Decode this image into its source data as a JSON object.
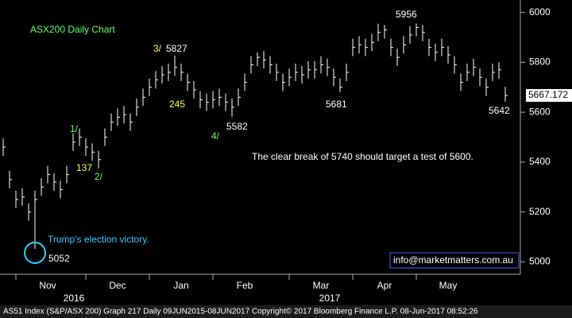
{
  "chart_data": {
    "type": "ohlc",
    "title": "ASX200 Daily Chart",
    "categories": [
      null,
      null,
      null,
      null,
      null,
      null,
      null,
      "Nov",
      null,
      null,
      null,
      null,
      null,
      null,
      null,
      null,
      null,
      null,
      "Dec",
      null,
      null,
      null,
      null,
      null,
      null,
      null,
      null,
      null,
      "Jan",
      null,
      null,
      null,
      null,
      null,
      null,
      null,
      null,
      null,
      "Feb",
      null,
      null,
      null,
      null,
      null,
      null,
      null,
      null,
      null,
      null,
      null,
      "Mar",
      null,
      null,
      null,
      null,
      null,
      null,
      null,
      null,
      null,
      "Apr",
      null,
      null,
      null,
      null,
      null,
      null,
      null,
      null,
      null,
      "May",
      null,
      null,
      null,
      null,
      null,
      null,
      null,
      null,
      null
    ],
    "years": [
      "2016",
      "2017"
    ],
    "series": [
      {
        "name": "AS51 Index",
        "color": "#ffffff",
        "high": [
          5495,
          5365,
          5285,
          5295,
          5235,
          5285,
          5335,
          5385,
          5355,
          5325,
          5385,
          5515,
          5535,
          5495,
          5475,
          5445,
          5535,
          5595,
          5615,
          5625,
          5595,
          5655,
          5695,
          5735,
          5765,
          5785,
          5795,
          5827,
          5795,
          5755,
          5725,
          5685,
          5675,
          5685,
          5695,
          5675,
          5655,
          5695,
          5755,
          5825,
          5840,
          5845,
          5825,
          5795,
          5755,
          5775,
          5795,
          5785,
          5805,
          5805,
          5825,
          5815,
          5775,
          5735,
          5795,
          5895,
          5905,
          5895,
          5915,
          5955,
          5950,
          5895,
          5855,
          5905,
          5945,
          5956,
          5950,
          5895,
          5875,
          5895,
          5865,
          5825,
          5755,
          5795,
          5815,
          5775,
          5735,
          5795,
          5800,
          5702
        ],
        "low": [
          5425,
          5295,
          5215,
          5225,
          5165,
          5052,
          5265,
          5315,
          5285,
          5255,
          5315,
          5445,
          5465,
          5425,
          5405,
          5375,
          5465,
          5525,
          5545,
          5555,
          5525,
          5585,
          5625,
          5665,
          5695,
          5715,
          5725,
          5745,
          5725,
          5685,
          5655,
          5615,
          5605,
          5615,
          5625,
          5605,
          5582,
          5625,
          5685,
          5755,
          5785,
          5775,
          5755,
          5725,
          5685,
          5705,
          5725,
          5715,
          5735,
          5735,
          5755,
          5745,
          5705,
          5681,
          5725,
          5825,
          5835,
          5825,
          5845,
          5885,
          5895,
          5825,
          5785,
          5835,
          5875,
          5905,
          5885,
          5825,
          5805,
          5825,
          5795,
          5755,
          5685,
          5725,
          5745,
          5705,
          5665,
          5725,
          5735,
          5642
        ],
        "close": [
          5460,
          5330,
          5250,
          5260,
          5200,
          5250,
          5300,
          5350,
          5320,
          5290,
          5350,
          5480,
          5500,
          5460,
          5440,
          5410,
          5500,
          5560,
          5580,
          5590,
          5560,
          5620,
          5660,
          5700,
          5730,
          5750,
          5760,
          5780,
          5760,
          5720,
          5690,
          5650,
          5640,
          5650,
          5660,
          5640,
          5620,
          5660,
          5720,
          5790,
          5820,
          5810,
          5790,
          5760,
          5720,
          5740,
          5760,
          5750,
          5770,
          5770,
          5790,
          5780,
          5740,
          5700,
          5760,
          5860,
          5870,
          5860,
          5880,
          5920,
          5930,
          5860,
          5820,
          5870,
          5910,
          5940,
          5920,
          5860,
          5840,
          5860,
          5830,
          5790,
          5720,
          5760,
          5780,
          5740,
          5700,
          5760,
          5770,
          5667
        ]
      }
    ],
    "last_price": 5667.172,
    "ylim": [
      4950,
      6050
    ],
    "yticks": [
      5000,
      5200,
      5400,
      5600,
      5800,
      6000
    ],
    "annotations": [
      "3/",
      "5827",
      "245",
      "4/",
      "5582",
      "1/",
      "137",
      "2/",
      "5681",
      "5956",
      "5642",
      "The clear break of 5740 should target a test of 5600.",
      "Trump's election victory.",
      "5052"
    ],
    "contact": "info@marketmatters.com.au",
    "footer": "AS51 Index (S&P/ASX 200) Graph 217  Daily 09JUN2015-08JUN2017     Copyright© 2017 Bloomberg Finance L.P.      08-Jun-2017 08:52:26"
  }
}
